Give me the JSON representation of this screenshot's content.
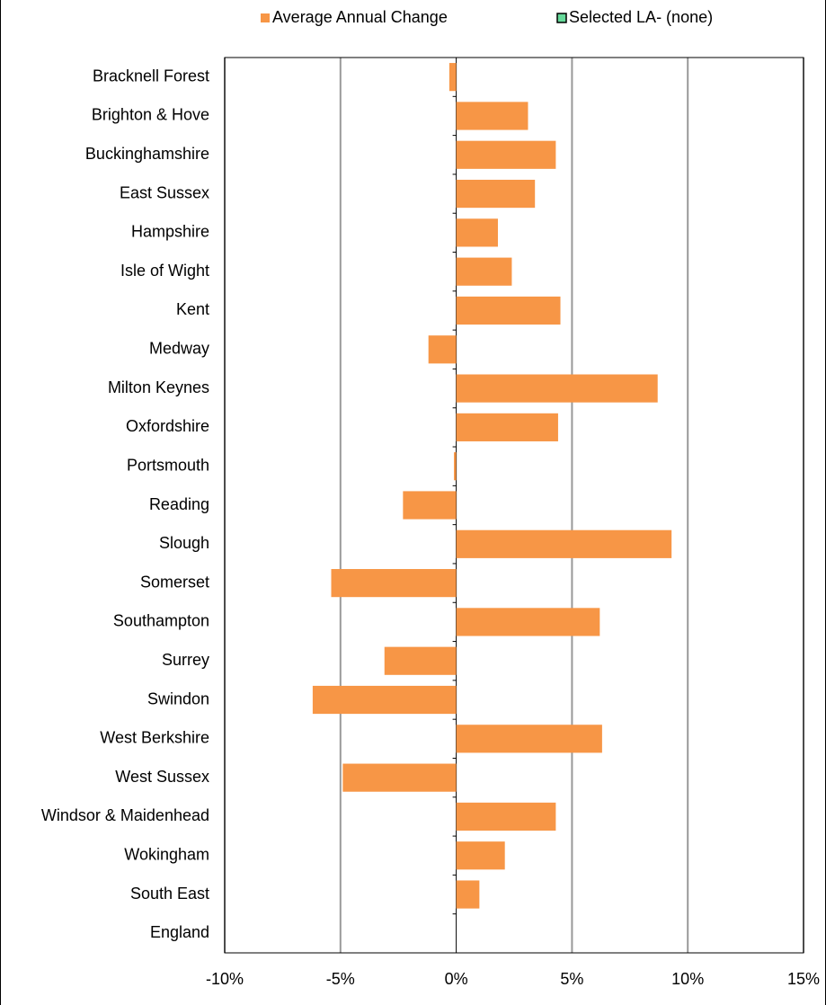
{
  "chart_data": {
    "type": "hbar",
    "categories": [
      "Bracknell Forest",
      "Brighton & Hove",
      "Buckinghamshire",
      "East Sussex",
      "Hampshire",
      "Isle of Wight",
      "Kent",
      "Medway",
      "Milton Keynes",
      "Oxfordshire",
      "Portsmouth",
      "Reading",
      "Slough",
      "Somerset",
      "Southampton",
      "Surrey",
      "Swindon",
      "West Berkshire",
      "West Sussex",
      "Windsor & Maidenhead",
      "Wokingham",
      "South East",
      "England"
    ],
    "series": [
      {
        "name": "Average Annual Change",
        "color": "#f79646",
        "values": [
          -0.3,
          3.1,
          4.3,
          3.4,
          1.8,
          2.4,
          4.5,
          -1.2,
          8.7,
          4.4,
          -0.1,
          -2.3,
          9.3,
          -5.4,
          6.2,
          -3.1,
          -6.2,
          6.3,
          -4.9,
          4.3,
          2.1,
          1.0,
          0
        ]
      },
      {
        "name": "Selected LA- (none)",
        "color": "#66d99a",
        "values": [
          null,
          null,
          null,
          null,
          null,
          null,
          null,
          null,
          null,
          null,
          null,
          null,
          null,
          null,
          null,
          null,
          null,
          null,
          null,
          null,
          null,
          null,
          null
        ]
      }
    ],
    "xlim": [
      -10,
      15
    ],
    "xticks": [
      {
        "value": -10,
        "label": "-10%"
      },
      {
        "value": -5,
        "label": "-5%"
      },
      {
        "value": 0,
        "label": "0%"
      },
      {
        "value": 5,
        "label": "5%"
      },
      {
        "value": 10,
        "label": "10%"
      },
      {
        "value": 15,
        "label": "15%"
      }
    ],
    "grid": true,
    "legend": "top"
  }
}
